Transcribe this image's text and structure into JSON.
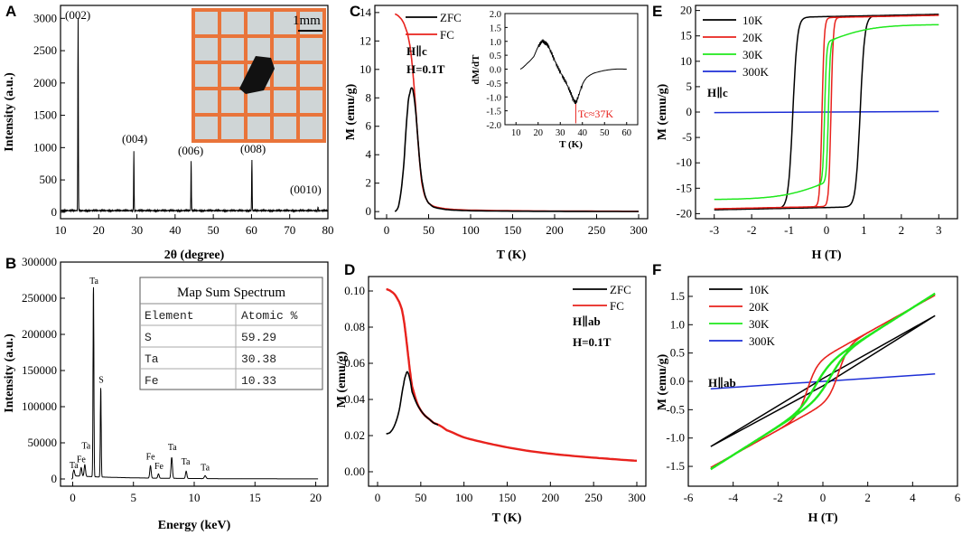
{
  "figure": {
    "panels": {
      "A": {
        "letter": "A",
        "xlabel": "2θ (degree)",
        "ylabel": "Intensity (a.u.)",
        "inset_scale_label": "1mm",
        "xticks": [
          10,
          20,
          30,
          40,
          50,
          60,
          70,
          80
        ],
        "yticks": [
          0,
          500,
          1000,
          1500,
          2000,
          2500,
          3000
        ],
        "peak_labels": [
          "(002)",
          "(004)",
          "(006)",
          "(008)",
          "(0010)"
        ]
      },
      "B": {
        "letter": "B",
        "xlabel": "Energy (keV)",
        "ylabel": "Intensity (a.u.)",
        "xticks": [
          0,
          5,
          10,
          15,
          20
        ],
        "yticks": [
          0,
          50000,
          100000,
          150000,
          200000,
          250000,
          300000
        ],
        "table": {
          "title": "Map Sum Spectrum",
          "headers": [
            "Element",
            "Atomic %"
          ],
          "rows": [
            [
              "S",
              "59.29"
            ],
            [
              "Ta",
              "30.38"
            ],
            [
              "Fe",
              "10.33"
            ]
          ]
        },
        "peak_labels": [
          "Ta",
          "S",
          "Ta",
          "Fe",
          "Ta",
          "Fe",
          "Fe",
          "Ta",
          "Ta",
          "Ta"
        ]
      },
      "C": {
        "letter": "C",
        "xlabel": "T (K)",
        "ylabel": "M (emu/g)",
        "legend": [
          "ZFC",
          "FC"
        ],
        "field_dir": "H∥c",
        "field_val": "H=0.1T",
        "xticks": [
          0,
          50,
          100,
          150,
          200,
          250,
          300
        ],
        "yticks": [
          0,
          2,
          4,
          6,
          8,
          10,
          12,
          14
        ],
        "inset": {
          "xlabel": "T (K)",
          "ylabel": "dM/dT",
          "tc_label": "Tc≈37K",
          "xticks": [
            10,
            20,
            30,
            40,
            50,
            60
          ],
          "yticks": [
            "2.0",
            "1.5",
            "1.0",
            "0.5",
            "0.0",
            "-0.5",
            "-1.0",
            "-1.5",
            "-2.0"
          ]
        }
      },
      "D": {
        "letter": "D",
        "xlabel": "T (K)",
        "ylabel": "M (emu/g)",
        "legend": [
          "ZFC",
          "FC"
        ],
        "field_dir": "H∥ab",
        "field_val": "H=0.1T",
        "xticks": [
          0,
          50,
          100,
          150,
          200,
          250,
          300
        ],
        "yticks": [
          "0.00",
          "0.02",
          "0.04",
          "0.06",
          "0.08",
          "0.10"
        ]
      },
      "E": {
        "letter": "E",
        "xlabel": "H (T)",
        "ylabel": "M (emu/g)",
        "legend": [
          "10K",
          "20K",
          "30K",
          "300K"
        ],
        "field_dir": "H∥c",
        "xticks": [
          -3,
          -2,
          -1,
          0,
          1,
          2,
          3
        ],
        "yticks": [
          20,
          15,
          10,
          5,
          0,
          -5,
          -10,
          -15,
          -20
        ]
      },
      "F": {
        "letter": "F",
        "xlabel": "H (T)",
        "ylabel": "M (emu/g)",
        "legend": [
          "10K",
          "20K",
          "30K",
          "300K"
        ],
        "field_dir": "H∥ab",
        "xticks": [
          -6,
          -4,
          -2,
          0,
          2,
          4,
          6
        ],
        "yticks": [
          "1.5",
          "1.0",
          "0.5",
          "0.0",
          "-0.5",
          "-1.0",
          "-1.5"
        ]
      }
    }
  },
  "colors": {
    "black": "#000000",
    "red": "#e8221d",
    "green": "#1fe81c",
    "blue": "#1e2fd6",
    "inset_bg": "#e8763a"
  },
  "chart_data": [
    {
      "panel": "A",
      "type": "line",
      "title": "",
      "xlabel": "2θ (degree)",
      "ylabel": "Intensity (a.u.)",
      "xlim": [
        10,
        80
      ],
      "ylim": [
        -100,
        3200
      ],
      "series": [
        {
          "name": "XRD",
          "color": "#000000",
          "peaks": [
            {
              "x": 14.6,
              "y": 3000,
              "label": "(002)"
            },
            {
              "x": 29.2,
              "y": 940,
              "label": "(004)"
            },
            {
              "x": 44.2,
              "y": 790,
              "label": "(006)"
            },
            {
              "x": 60.1,
              "y": 810,
              "label": "(008)"
            },
            {
              "x": 77.4,
              "y": 80,
              "label": "(0010)"
            }
          ],
          "baseline": 25
        }
      ]
    },
    {
      "panel": "B",
      "type": "line",
      "title": "",
      "xlabel": "Energy (keV)",
      "ylabel": "Intensity (a.u.)",
      "xlim": [
        -1,
        21
      ],
      "ylim": [
        -10000,
        300000
      ],
      "series": [
        {
          "name": "EDX",
          "color": "#000000",
          "peaks": [
            {
              "x": 0.1,
              "y": 8000,
              "w": 0.08
            },
            {
              "x": 0.7,
              "y": 12000,
              "w": 0.08
            },
            {
              "x": 1.0,
              "y": 16000,
              "w": 0.08
            },
            {
              "x": 1.71,
              "y": 262000,
              "w": 0.05
            },
            {
              "x": 2.31,
              "y": 123000,
              "w": 0.05
            },
            {
              "x": 6.4,
              "y": 17000,
              "w": 0.08
            },
            {
              "x": 7.06,
              "y": 6000,
              "w": 0.08
            },
            {
              "x": 8.15,
              "y": 29000,
              "w": 0.08
            },
            {
              "x": 9.34,
              "y": 10000,
              "w": 0.08
            },
            {
              "x": 10.9,
              "y": 4000,
              "w": 0.1
            }
          ],
          "background": 3000
        }
      ],
      "peak_label_positions": [
        [
          0.1,
          15000
        ],
        [
          2.35,
          133000
        ],
        [
          1.75,
          270000
        ],
        [
          0.7,
          23000
        ],
        [
          1.1,
          42000
        ],
        [
          6.4,
          27000
        ],
        [
          7.1,
          14000
        ],
        [
          8.2,
          40000
        ],
        [
          9.3,
          20000
        ],
        [
          10.9,
          12000
        ]
      ]
    },
    {
      "panel": "C",
      "type": "line",
      "title": "",
      "xlabel": "T (K)",
      "ylabel": "M (emu/g)",
      "xlim": [
        0,
        300
      ],
      "ylim": [
        -0.5,
        14.5
      ],
      "series": [
        {
          "name": "ZFC",
          "color": "#000000",
          "x": [
            10,
            15,
            20,
            25,
            28,
            30,
            32,
            35,
            38,
            40,
            42,
            45,
            48,
            50,
            55,
            60,
            70,
            80,
            100,
            150,
            200,
            250,
            300
          ],
          "y": [
            0.0,
            0.6,
            3.0,
            7.2,
            8.4,
            8.7,
            8.3,
            6.8,
            4.6,
            3.2,
            2.2,
            1.3,
            0.8,
            0.6,
            0.35,
            0.25,
            0.15,
            0.1,
            0.06,
            0.03,
            0.02,
            0.01,
            0.01
          ]
        },
        {
          "name": "FC",
          "color": "#e8221d",
          "x": [
            10,
            15,
            20,
            25,
            28,
            30,
            32,
            34,
            36,
            38,
            40,
            42,
            45,
            48,
            50,
            55,
            60,
            70,
            80,
            100,
            150,
            200,
            250,
            300
          ],
          "y": [
            13.9,
            13.7,
            13.3,
            12.5,
            11.6,
            10.6,
            9.3,
            7.8,
            6.1,
            4.5,
            3.1,
            2.0,
            1.2,
            0.8,
            0.6,
            0.4,
            0.3,
            0.2,
            0.15,
            0.1,
            0.06,
            0.04,
            0.03,
            0.02
          ]
        }
      ],
      "inset": {
        "type": "line",
        "xlabel": "T (K)",
        "ylabel": "dM/dT",
        "xlim": [
          5,
          65
        ],
        "ylim": [
          -2.0,
          2.0
        ],
        "annotation": "Tc≈37K",
        "series": [
          {
            "name": "dM/dT",
            "color": "#000000",
            "x": [
              12,
              15,
              18,
              20,
              22,
              23,
              24,
              25,
              27,
              29,
              31,
              33,
              35,
              36,
              37,
              38,
              40,
              42,
              45,
              50,
              55,
              60
            ],
            "y": [
              0.0,
              0.2,
              0.45,
              0.8,
              1.0,
              0.95,
              0.9,
              0.75,
              0.4,
              0.05,
              -0.25,
              -0.55,
              -0.9,
              -1.1,
              -1.2,
              -1.0,
              -0.55,
              -0.3,
              -0.15,
              -0.05,
              0.0,
              0.0
            ]
          }
        ]
      }
    },
    {
      "panel": "D",
      "type": "line",
      "title": "",
      "xlabel": "T (K)",
      "ylabel": "M (emu/g)",
      "xlim": [
        0,
        300
      ],
      "ylim": [
        -0.008,
        0.108
      ],
      "series": [
        {
          "name": "ZFC",
          "color": "#000000",
          "x": [
            10,
            15,
            20,
            25,
            30,
            33,
            35,
            38,
            40,
            45,
            50,
            55,
            60,
            65,
            70
          ],
          "y": [
            0.021,
            0.022,
            0.026,
            0.034,
            0.048,
            0.054,
            0.055,
            0.05,
            0.044,
            0.038,
            0.034,
            0.031,
            0.029,
            0.027,
            0.026
          ]
        },
        {
          "name": "FC",
          "color": "#e8221d",
          "x": [
            10,
            15,
            20,
            25,
            28,
            30,
            32,
            35,
            38,
            40,
            45,
            50,
            55,
            60,
            65,
            70,
            80,
            100,
            125,
            150,
            175,
            200,
            225,
            250,
            275,
            300
          ],
          "y": [
            0.101,
            0.1,
            0.098,
            0.094,
            0.09,
            0.085,
            0.078,
            0.066,
            0.054,
            0.047,
            0.039,
            0.034,
            0.031,
            0.029,
            0.027,
            0.026,
            0.023,
            0.019,
            0.016,
            0.0135,
            0.0115,
            0.01,
            0.0088,
            0.0078,
            0.0069,
            0.0061
          ]
        }
      ]
    },
    {
      "panel": "E",
      "type": "line",
      "title": "",
      "xlabel": "H (T)",
      "ylabel": "M (emu/g)",
      "xlim": [
        -3.5,
        3.5
      ],
      "ylim": [
        -21,
        21
      ],
      "series": [
        {
          "name": "10K",
          "color": "#000000",
          "loop": true,
          "Ms": 18.8,
          "Hc": 0.9,
          "width": 0.12,
          "slope": 0.15
        },
        {
          "name": "20K",
          "color": "#e8221d",
          "loop": true,
          "Ms": 18.6,
          "Hc": 0.12,
          "width": 0.06,
          "slope": 0.15
        },
        {
          "name": "30K",
          "color": "#1fe81c",
          "loop": true,
          "Ms": 13.8,
          "Hc": 0.05,
          "width": 0.05,
          "slope": 1.15,
          "wing": 2.2
        },
        {
          "name": "300K",
          "color": "#1e2fd6",
          "x": [
            -3,
            3
          ],
          "y": [
            -0.1,
            0.1
          ]
        }
      ]
    },
    {
      "panel": "F",
      "type": "line",
      "title": "",
      "xlabel": "H (T)",
      "ylabel": "M (emu/g)",
      "xlim": [
        -6,
        6
      ],
      "ylim": [
        -1.85,
        1.85
      ],
      "series": [
        {
          "name": "10K",
          "color": "#000000",
          "x": [
            -5,
            5,
            -5
          ],
          "y": [
            -1.15,
            1.16,
            -1.15
          ],
          "loop_upper": [
            [
              -5,
              -1.15
            ],
            [
              0,
              0.05
            ],
            [
              5,
              1.16
            ]
          ],
          "loop_lower": [
            [
              -5,
              -1.15
            ],
            [
              0,
              -0.08
            ],
            [
              5,
              1.16
            ]
          ]
        },
        {
          "name": "20K",
          "color": "#e8221d",
          "loop": true,
          "Ms": 1.58,
          "amp": 0.42,
          "Hc": 0.7,
          "width": 0.45,
          "slope": 0.22
        },
        {
          "name": "30K",
          "color": "#1fe81c",
          "loop": true,
          "Ms": 1.62,
          "amp": 0.3,
          "Hc": 0.35,
          "width": 0.7,
          "slope": 0.25
        },
        {
          "name": "300K",
          "color": "#1e2fd6",
          "x": [
            -5,
            5
          ],
          "y": [
            -0.13,
            0.13
          ]
        }
      ]
    }
  ]
}
